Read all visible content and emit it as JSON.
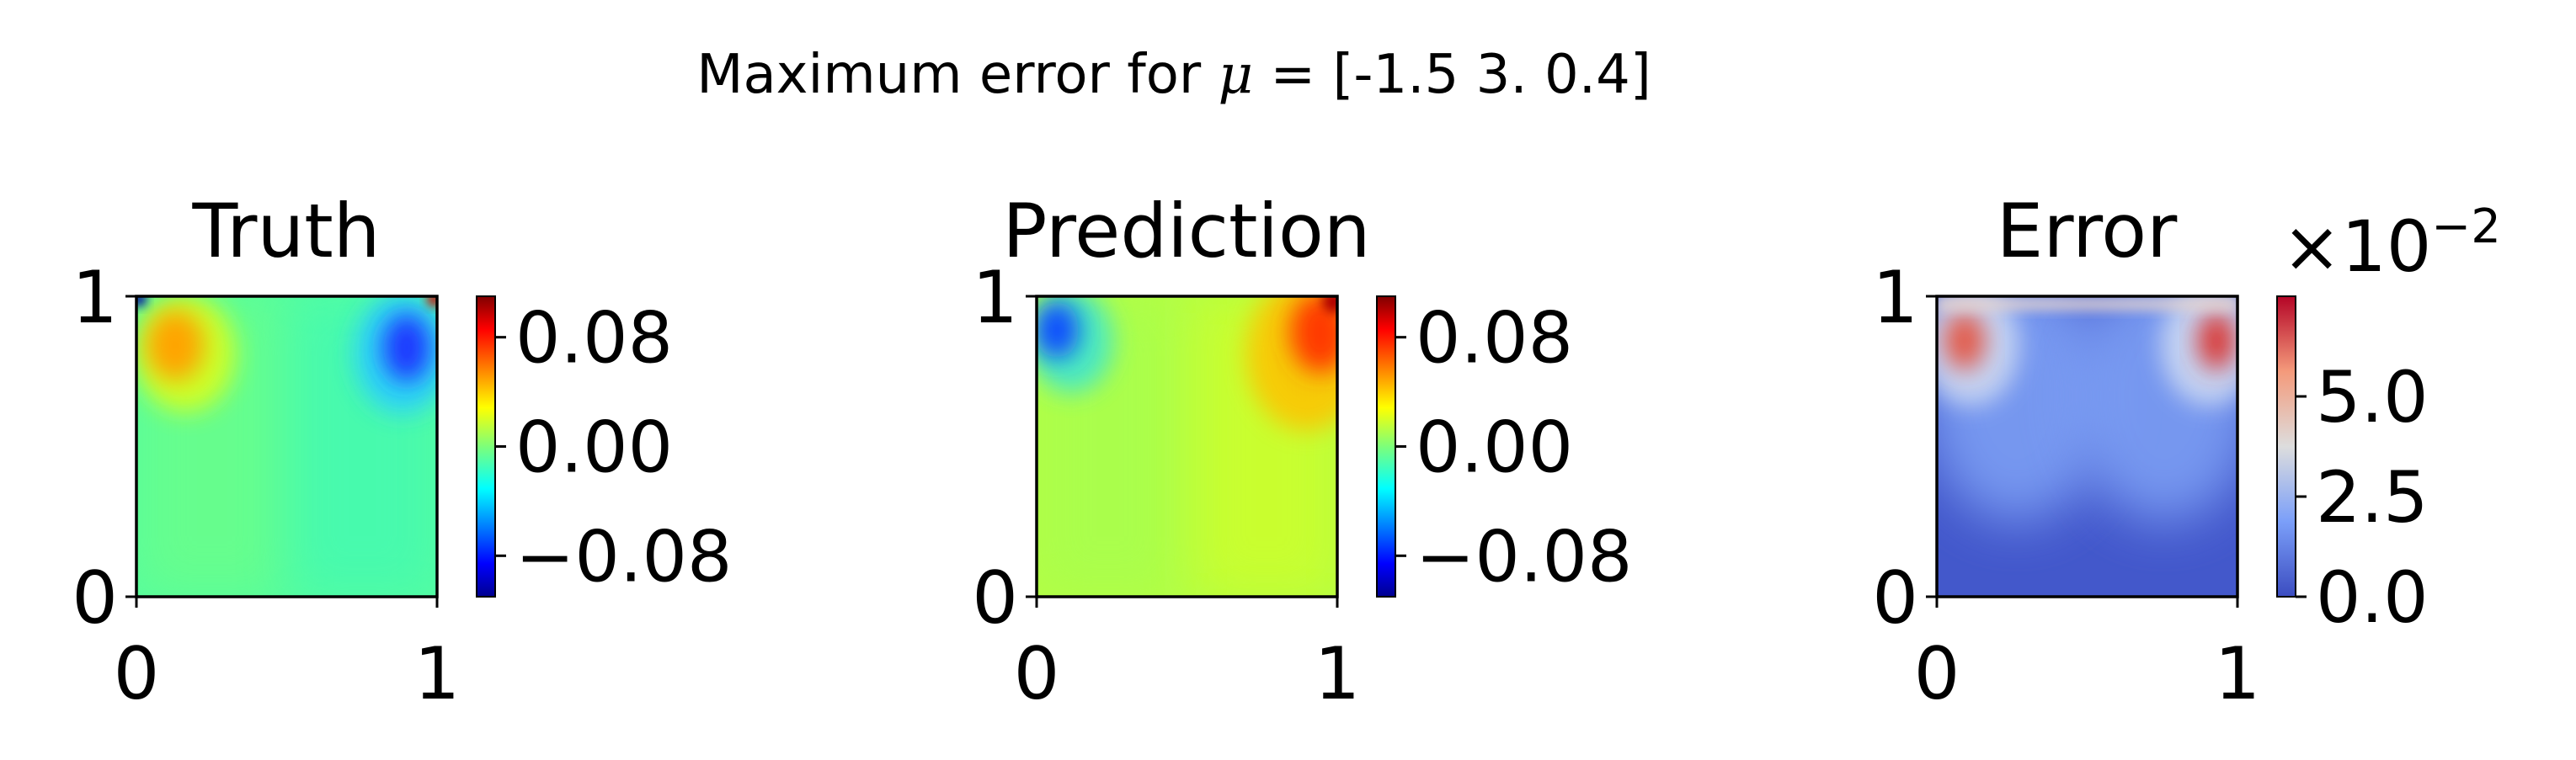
{
  "chart_data": {
    "type": "heatmap",
    "suptitle": "Maximum error for μ = [-1.5  3.   0.4]",
    "panels": [
      {
        "title": "Truth",
        "xlim": [
          0,
          1
        ],
        "ylim": [
          0,
          1
        ],
        "xticks": [
          "0",
          "1"
        ],
        "yticks": [
          "0",
          "1"
        ],
        "colormap": "jet",
        "colorbar": {
          "range": [
            -0.11,
            0.11
          ],
          "ticks": [
            -0.08,
            0.0,
            0.08
          ],
          "tick_labels": [
            "−0.08",
            "0.00",
            "0.08"
          ],
          "offset_label": ""
        },
        "background_value": -0.01,
        "features": [
          {
            "x": 0.12,
            "y": 0.83,
            "value": 0.06,
            "note": "warm vortex near top-left"
          },
          {
            "x": 0.88,
            "y": 0.83,
            "value": -0.07,
            "note": "cold vortex near top-right"
          },
          {
            "x": 0.01,
            "y": 0.99,
            "value": -0.11,
            "note": "top-left corner"
          },
          {
            "x": 0.99,
            "y": 0.99,
            "value": 0.11,
            "note": "top-right corner"
          }
        ]
      },
      {
        "title": "Prediction",
        "xlim": [
          0,
          1
        ],
        "ylim": [
          0,
          1
        ],
        "xticks": [
          "0",
          "1"
        ],
        "yticks": [
          "0",
          "1"
        ],
        "colormap": "jet",
        "colorbar": {
          "range": [
            -0.11,
            0.11
          ],
          "ticks": [
            -0.08,
            0.0,
            0.08
          ],
          "tick_labels": [
            "−0.08",
            "0.00",
            "0.08"
          ],
          "offset_label": ""
        },
        "background_value": 0.01,
        "features": [
          {
            "x": 0.06,
            "y": 0.9,
            "value": -0.08,
            "note": "cold spot near top-left"
          },
          {
            "x": 0.93,
            "y": 0.9,
            "value": 0.09,
            "note": "warm spot near top-right"
          }
        ]
      },
      {
        "title": "Error",
        "xlim": [
          0,
          1
        ],
        "ylim": [
          0,
          1
        ],
        "xticks": [
          "0",
          "1"
        ],
        "yticks": [
          "0",
          "1"
        ],
        "colormap": "coolwarm",
        "colorbar": {
          "range": [
            0,
            7.5
          ],
          "ticks": [
            0.0,
            2.5,
            5.0
          ],
          "tick_labels": [
            "0.0",
            "2.5",
            "5.0"
          ],
          "offset_label": "×10",
          "offset_exponent": "−2"
        },
        "background_value": 0.3,
        "features": [
          {
            "x": 0.09,
            "y": 0.85,
            "value": 6.5,
            "note": "error peak near top-left"
          },
          {
            "x": 0.91,
            "y": 0.85,
            "value": 7.2,
            "note": "error peak near top-right"
          }
        ]
      }
    ]
  }
}
